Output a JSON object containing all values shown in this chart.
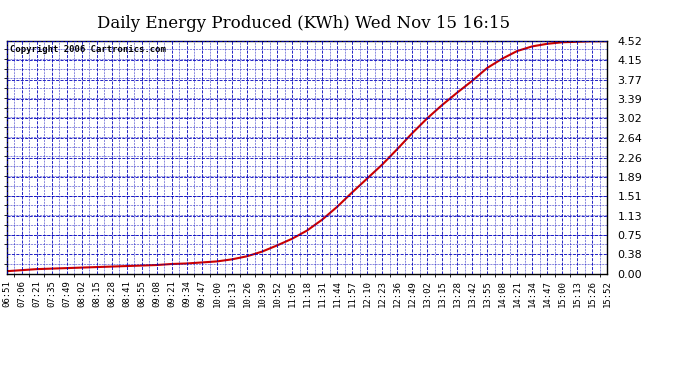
{
  "title": "Daily Energy Produced (KWh) Wed Nov 15 16:15",
  "copyright_text": "Copyright 2006 Cartronics.com",
  "line_color": "#cc0000",
  "background_color": "#ffffff",
  "plot_bg_color": "#ffffff",
  "grid_color": "#0000bb",
  "border_color": "#000000",
  "title_fontsize": 12,
  "yticks": [
    0.0,
    0.38,
    0.75,
    1.13,
    1.51,
    1.89,
    2.26,
    2.64,
    3.02,
    3.39,
    3.77,
    4.15,
    4.52
  ],
  "xlabels": [
    "06:51",
    "07:06",
    "07:21",
    "07:35",
    "07:49",
    "08:02",
    "08:15",
    "08:28",
    "08:41",
    "08:55",
    "09:08",
    "09:21",
    "09:34",
    "09:47",
    "10:00",
    "10:13",
    "10:26",
    "10:39",
    "10:52",
    "11:05",
    "11:18",
    "11:31",
    "11:44",
    "11:57",
    "12:10",
    "12:23",
    "12:36",
    "12:49",
    "13:02",
    "13:15",
    "13:28",
    "13:42",
    "13:55",
    "14:08",
    "14:21",
    "14:34",
    "14:47",
    "15:00",
    "15:13",
    "15:26",
    "15:52"
  ],
  "y_data": [
    0.05,
    0.07,
    0.09,
    0.1,
    0.11,
    0.12,
    0.13,
    0.14,
    0.15,
    0.16,
    0.17,
    0.19,
    0.2,
    0.22,
    0.24,
    0.28,
    0.34,
    0.43,
    0.55,
    0.68,
    0.84,
    1.05,
    1.3,
    1.58,
    1.85,
    2.12,
    2.42,
    2.73,
    3.02,
    3.28,
    3.52,
    3.75,
    4.0,
    4.18,
    4.33,
    4.42,
    4.47,
    4.5,
    4.51,
    4.52,
    4.52
  ],
  "ylim": [
    0.0,
    4.52
  ],
  "line_width": 1.5
}
